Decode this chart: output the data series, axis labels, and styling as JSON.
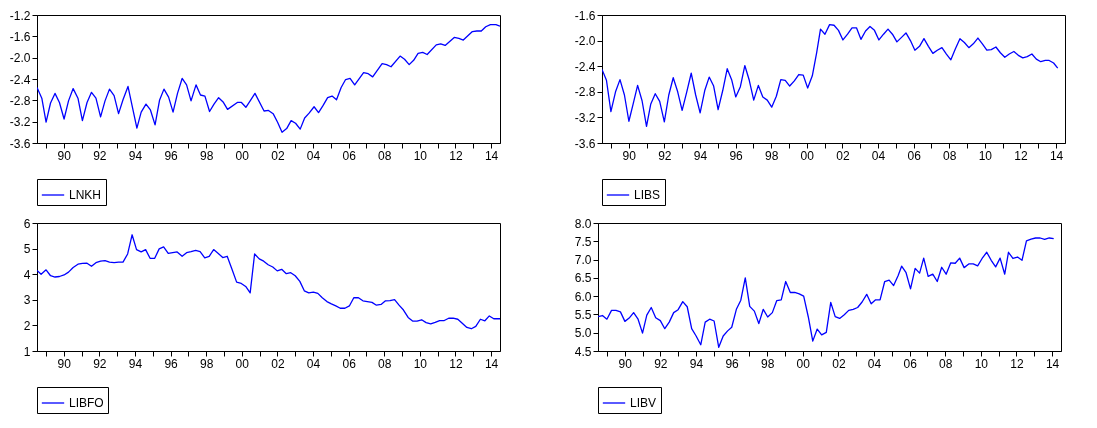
{
  "chart_data": [
    {
      "type": "line",
      "legend": "bottom",
      "xlim": [
        1988.5,
        2014.5
      ],
      "xticks": [
        {
          "value": 1989,
          "label": null
        },
        {
          "value": 1990,
          "label": "90"
        },
        {
          "value": 1991,
          "label": null
        },
        {
          "value": 1992,
          "label": "92"
        },
        {
          "value": 1993,
          "label": null
        },
        {
          "value": 1994,
          "label": "94"
        },
        {
          "value": 1995,
          "label": null
        },
        {
          "value": 1996,
          "label": "96"
        },
        {
          "value": 1997,
          "label": null
        },
        {
          "value": 1998,
          "label": "98"
        },
        {
          "value": 1999,
          "label": null
        },
        {
          "value": 2000,
          "label": "00"
        },
        {
          "value": 2001,
          "label": null
        },
        {
          "value": 2002,
          "label": "02"
        },
        {
          "value": 2003,
          "label": null
        },
        {
          "value": 2004,
          "label": "04"
        },
        {
          "value": 2005,
          "label": null
        },
        {
          "value": 2006,
          "label": "06"
        },
        {
          "value": 2007,
          "label": null
        },
        {
          "value": 2008,
          "label": "08"
        },
        {
          "value": 2009,
          "label": null
        },
        {
          "value": 2010,
          "label": "10"
        },
        {
          "value": 2011,
          "label": null
        },
        {
          "value": 2012,
          "label": "12"
        },
        {
          "value": 2013,
          "label": null
        },
        {
          "value": 2014,
          "label": "14"
        }
      ],
      "ylim": [
        -3.6,
        -1.2
      ],
      "yticks": [
        -3.6,
        -3.2,
        -2.8,
        -2.4,
        {
          "value": -2,
          "label": "-2.0"
        },
        -1.6,
        -1.2
      ],
      "series": [
        {
          "name": "LNKH",
          "color": "#0000ff",
          "x": [
            1988.5,
            1988.77,
            1989.01,
            1989.26,
            1989.51,
            1989.76,
            1990.02,
            1990.27,
            1990.53,
            1990.8,
            1991.05,
            1991.31,
            1991.56,
            1991.81,
            1992.07,
            1992.32,
            1992.57,
            1992.83,
            1993.08,
            1993.33,
            1993.61,
            1993.86,
            1994.11,
            1994.35,
            1994.62,
            1994.87,
            1995.13,
            1995.38,
            1995.63,
            1995.89,
            1996.14,
            1996.39,
            1996.65,
            1996.9,
            1997.15,
            1997.43,
            1997.68,
            1997.93,
            1998.19,
            1998.44,
            1998.7,
            1998.95,
            1999.2,
            1999.75,
            1999.98,
            2000.23,
            2000.47,
            2000.74,
            2001.25,
            2001.5,
            2001.76,
            2002.01,
            2002.26,
            2002.52,
            2002.77,
            2003.02,
            2003.28,
            2003.53,
            2003.78,
            2004.06,
            2004.31,
            2004.56,
            2004.82,
            2005.07,
            2005.32,
            2005.58,
            2005.83,
            2006.08,
            2006.34,
            2006.84,
            2007.1,
            2007.35,
            2007.88,
            2008.13,
            2008.38,
            2008.89,
            2009.14,
            2009.4,
            2009.65,
            2009.9,
            2010.16,
            2010.41,
            2010.92,
            2011.17,
            2011.42,
            2011.93,
            2012.19,
            2012.44,
            2012.95,
            2013.2,
            2013.45,
            2013.7,
            2013.96,
            2014.27,
            2014.5
          ],
          "values": [
            -2.56,
            -2.76,
            -3.21,
            -2.85,
            -2.67,
            -2.84,
            -3.15,
            -2.81,
            -2.58,
            -2.76,
            -3.18,
            -2.84,
            -2.65,
            -2.76,
            -3.11,
            -2.81,
            -2.59,
            -2.71,
            -3.05,
            -2.79,
            -2.54,
            -2.93,
            -3.32,
            -3.02,
            -2.87,
            -2.98,
            -3.26,
            -2.8,
            -2.59,
            -2.74,
            -3.02,
            -2.67,
            -2.39,
            -2.51,
            -2.81,
            -2.51,
            -2.7,
            -2.72,
            -3.01,
            -2.87,
            -2.75,
            -2.83,
            -2.97,
            -2.84,
            -2.84,
            -2.93,
            -2.81,
            -2.67,
            -3.0,
            -2.99,
            -3.05,
            -3.21,
            -3.4,
            -3.33,
            -3.18,
            -3.23,
            -3.34,
            -3.13,
            -3.04,
            -2.92,
            -3.03,
            -2.9,
            -2.75,
            -2.72,
            -2.79,
            -2.56,
            -2.41,
            -2.39,
            -2.51,
            -2.28,
            -2.3,
            -2.36,
            -2.11,
            -2.13,
            -2.17,
            -1.97,
            -2.03,
            -2.13,
            -2.05,
            -1.92,
            -1.9,
            -1.94,
            -1.76,
            -1.74,
            -1.77,
            -1.62,
            -1.64,
            -1.67,
            -1.51,
            -1.5,
            -1.5,
            -1.42,
            -1.38,
            -1.38,
            -1.41
          ]
        }
      ]
    },
    {
      "type": "line",
      "legend": "bottom",
      "xlim": [
        1988.5,
        2014.5
      ],
      "xticks": [
        {
          "value": 1989,
          "label": null
        },
        {
          "value": 1990,
          "label": "90"
        },
        {
          "value": 1991,
          "label": null
        },
        {
          "value": 1992,
          "label": "92"
        },
        {
          "value": 1993,
          "label": null
        },
        {
          "value": 1994,
          "label": "94"
        },
        {
          "value": 1995,
          "label": null
        },
        {
          "value": 1996,
          "label": "96"
        },
        {
          "value": 1997,
          "label": null
        },
        {
          "value": 1998,
          "label": "98"
        },
        {
          "value": 1999,
          "label": null
        },
        {
          "value": 2000,
          "label": "00"
        },
        {
          "value": 2001,
          "label": null
        },
        {
          "value": 2002,
          "label": "02"
        },
        {
          "value": 2003,
          "label": null
        },
        {
          "value": 2004,
          "label": "04"
        },
        {
          "value": 2005,
          "label": null
        },
        {
          "value": 2006,
          "label": "06"
        },
        {
          "value": 2007,
          "label": null
        },
        {
          "value": 2008,
          "label": "08"
        },
        {
          "value": 2009,
          "label": null
        },
        {
          "value": 2010,
          "label": "10"
        },
        {
          "value": 2011,
          "label": null
        },
        {
          "value": 2012,
          "label": "12"
        },
        {
          "value": 2013,
          "label": null
        },
        {
          "value": 2014,
          "label": "14"
        }
      ],
      "ylim": [
        -3.6,
        -1.6
      ],
      "yticks": [
        -3.6,
        -3.2,
        -2.8,
        -2.4,
        {
          "value": -2,
          "label": "-2.0"
        },
        -1.6
      ],
      "series": [
        {
          "name": "LIBS",
          "color": "#0000ff",
          "x": [
            1988.5,
            1988.75,
            1989.0,
            1989.26,
            1989.51,
            1989.76,
            1990.01,
            1990.25,
            1990.5,
            1990.75,
            1991.0,
            1991.24,
            1991.49,
            1991.74,
            1992.0,
            1992.25,
            1992.5,
            1992.75,
            1993.0,
            1993.26,
            1993.51,
            1993.76,
            1994.01,
            1994.27,
            1994.52,
            1994.77,
            1995.02,
            1995.28,
            1995.53,
            1995.78,
            1996.01,
            1996.27,
            1996.52,
            1996.77,
            1997.02,
            1997.28,
            1997.53,
            1997.78,
            1998.03,
            1998.29,
            1998.54,
            1998.79,
            1999.04,
            1999.3,
            1999.55,
            1999.8,
            2000.05,
            2000.31,
            2000.56,
            2000.77,
            2001.02,
            2001.28,
            2001.53,
            2001.78,
            2002.03,
            2002.29,
            2002.54,
            2002.79,
            2003.04,
            2003.3,
            2003.55,
            2003.8,
            2004.05,
            2004.31,
            2004.56,
            2004.81,
            2005.06,
            2005.32,
            2005.57,
            2005.82,
            2006.07,
            2006.33,
            2006.58,
            2006.83,
            2007.08,
            2007.33,
            2007.59,
            2007.84,
            2008.09,
            2008.34,
            2008.6,
            2008.85,
            2009.1,
            2009.35,
            2009.61,
            2009.86,
            2010.11,
            2010.36,
            2010.62,
            2010.87,
            2011.12,
            2011.37,
            2011.63,
            2011.88,
            2012.13,
            2012.38,
            2012.64,
            2012.89,
            2013.14,
            2013.39,
            2013.61,
            2013.86,
            2014.09
          ],
          "values": [
            -2.45,
            -2.62,
            -3.11,
            -2.8,
            -2.61,
            -2.85,
            -3.26,
            -2.99,
            -2.7,
            -2.94,
            -3.34,
            -2.99,
            -2.83,
            -2.95,
            -3.27,
            -2.85,
            -2.58,
            -2.8,
            -3.09,
            -2.8,
            -2.51,
            -2.85,
            -3.13,
            -2.78,
            -2.57,
            -2.71,
            -3.08,
            -2.78,
            -2.44,
            -2.61,
            -2.88,
            -2.72,
            -2.39,
            -2.62,
            -2.93,
            -2.7,
            -2.88,
            -2.93,
            -3.04,
            -2.87,
            -2.61,
            -2.62,
            -2.71,
            -2.63,
            -2.53,
            -2.54,
            -2.74,
            -2.55,
            -2.18,
            -1.82,
            -1.9,
            -1.75,
            -1.76,
            -1.84,
            -1.99,
            -1.9,
            -1.8,
            -1.8,
            -1.98,
            -1.85,
            -1.78,
            -1.84,
            -1.99,
            -1.9,
            -1.82,
            -1.9,
            -2.02,
            -1.95,
            -1.88,
            -2.0,
            -2.15,
            -2.09,
            -1.97,
            -2.09,
            -2.2,
            -2.15,
            -2.11,
            -2.21,
            -2.3,
            -2.13,
            -1.97,
            -2.03,
            -2.11,
            -2.05,
            -1.96,
            -2.05,
            -2.15,
            -2.14,
            -2.1,
            -2.19,
            -2.26,
            -2.21,
            -2.17,
            -2.23,
            -2.27,
            -2.25,
            -2.21,
            -2.29,
            -2.33,
            -2.31,
            -2.31,
            -2.35,
            -2.43
          ]
        }
      ]
    },
    {
      "type": "line",
      "legend": "bottom",
      "xlim": [
        1988.5,
        2014.5
      ],
      "xticks": [
        {
          "value": 1989,
          "label": null
        },
        {
          "value": 1990,
          "label": "90"
        },
        {
          "value": 1991,
          "label": null
        },
        {
          "value": 1992,
          "label": "92"
        },
        {
          "value": 1993,
          "label": null
        },
        {
          "value": 1994,
          "label": "94"
        },
        {
          "value": 1995,
          "label": null
        },
        {
          "value": 1996,
          "label": "96"
        },
        {
          "value": 1997,
          "label": null
        },
        {
          "value": 1998,
          "label": "98"
        },
        {
          "value": 1999,
          "label": null
        },
        {
          "value": 2000,
          "label": "00"
        },
        {
          "value": 2001,
          "label": null
        },
        {
          "value": 2002,
          "label": "02"
        },
        {
          "value": 2003,
          "label": null
        },
        {
          "value": 2004,
          "label": "04"
        },
        {
          "value": 2005,
          "label": null
        },
        {
          "value": 2006,
          "label": "06"
        },
        {
          "value": 2007,
          "label": null
        },
        {
          "value": 2008,
          "label": "08"
        },
        {
          "value": 2009,
          "label": null
        },
        {
          "value": 2010,
          "label": "10"
        },
        {
          "value": 2011,
          "label": null
        },
        {
          "value": 2012,
          "label": "12"
        },
        {
          "value": 2013,
          "label": null
        },
        {
          "value": 2014,
          "label": "14"
        }
      ],
      "ylim": [
        1,
        6
      ],
      "yticks": [
        1,
        2,
        3,
        4,
        5,
        6
      ],
      "series": [
        {
          "name": "LIBFO",
          "color": "#0000ff",
          "x": [
            1988.5,
            1988.73,
            1989.01,
            1989.26,
            1989.51,
            1989.76,
            1990.02,
            1990.27,
            1990.53,
            1990.8,
            1991.05,
            1991.31,
            1991.56,
            1991.81,
            1992.07,
            1992.32,
            1992.57,
            1992.83,
            1993.08,
            1993.33,
            1993.59,
            1993.84,
            1994.09,
            1994.35,
            1994.6,
            1994.85,
            1995.11,
            1995.36,
            1995.61,
            1995.87,
            1996.12,
            1996.37,
            1996.65,
            1996.9,
            1997.15,
            1997.41,
            1997.66,
            1997.92,
            1998.17,
            1998.42,
            1998.68,
            1998.93,
            1999.18,
            1999.46,
            1999.71,
            1999.97,
            2000.22,
            2000.47,
            2000.72,
            2000.98,
            2001.23,
            2001.48,
            2001.74,
            2001.99,
            2002.24,
            2002.5,
            2002.75,
            2003.0,
            2003.26,
            2003.51,
            2003.76,
            2004.02,
            2004.27,
            2004.52,
            2004.78,
            2005.03,
            2005.28,
            2005.53,
            2005.79,
            2006.04,
            2006.29,
            2006.55,
            2006.8,
            2007.05,
            2007.31,
            2007.56,
            2007.82,
            2008.07,
            2008.32,
            2008.58,
            2008.83,
            2009.08,
            2009.34,
            2009.59,
            2009.84,
            2010.1,
            2010.35,
            2010.61,
            2010.86,
            2011.11,
            2011.37,
            2011.62,
            2011.87,
            2012.13,
            2012.38,
            2012.64,
            2012.89,
            2013.14,
            2013.4,
            2013.65,
            2013.9,
            2014.15,
            2014.5
          ],
          "values": [
            4.15,
            4.0,
            4.17,
            3.94,
            3.89,
            3.91,
            3.97,
            4.08,
            4.26,
            4.39,
            4.42,
            4.43,
            4.31,
            4.45,
            4.51,
            4.53,
            4.47,
            4.45,
            4.47,
            4.47,
            4.79,
            5.54,
            4.96,
            4.87,
            4.96,
            4.62,
            4.62,
            4.99,
            5.07,
            4.81,
            4.84,
            4.87,
            4.7,
            4.84,
            4.88,
            4.93,
            4.88,
            4.64,
            4.7,
            4.96,
            4.81,
            4.65,
            4.7,
            4.17,
            3.69,
            3.64,
            3.52,
            3.27,
            4.79,
            4.6,
            4.51,
            4.37,
            4.28,
            4.13,
            4.19,
            4.02,
            4.06,
            3.94,
            3.72,
            3.35,
            3.27,
            3.3,
            3.25,
            3.08,
            2.93,
            2.84,
            2.76,
            2.67,
            2.67,
            2.76,
            3.08,
            3.08,
            2.96,
            2.93,
            2.9,
            2.79,
            2.82,
            2.96,
            2.97,
            3.01,
            2.79,
            2.6,
            2.31,
            2.17,
            2.17,
            2.22,
            2.11,
            2.06,
            2.12,
            2.19,
            2.19,
            2.28,
            2.28,
            2.24,
            2.08,
            1.92,
            1.87,
            1.96,
            2.24,
            2.18,
            2.37,
            2.26,
            2.26
          ]
        }
      ]
    },
    {
      "type": "line",
      "legend": "bottom",
      "xlim": [
        1988.5,
        2014.5
      ],
      "xticks": [
        {
          "value": 1989,
          "label": null
        },
        {
          "value": 1990,
          "label": "90"
        },
        {
          "value": 1991,
          "label": null
        },
        {
          "value": 1992,
          "label": "92"
        },
        {
          "value": 1993,
          "label": null
        },
        {
          "value": 1994,
          "label": "94"
        },
        {
          "value": 1995,
          "label": null
        },
        {
          "value": 1996,
          "label": "96"
        },
        {
          "value": 1997,
          "label": null
        },
        {
          "value": 1998,
          "label": "98"
        },
        {
          "value": 1999,
          "label": null
        },
        {
          "value": 2000,
          "label": "00"
        },
        {
          "value": 2001,
          "label": null
        },
        {
          "value": 2002,
          "label": "02"
        },
        {
          "value": 2003,
          "label": null
        },
        {
          "value": 2004,
          "label": "04"
        },
        {
          "value": 2005,
          "label": null
        },
        {
          "value": 2006,
          "label": "06"
        },
        {
          "value": 2007,
          "label": null
        },
        {
          "value": 2008,
          "label": "08"
        },
        {
          "value": 2009,
          "label": null
        },
        {
          "value": 2010,
          "label": "10"
        },
        {
          "value": 2011,
          "label": null
        },
        {
          "value": 2012,
          "label": "12"
        },
        {
          "value": 2013,
          "label": null
        },
        {
          "value": 2014,
          "label": "14"
        }
      ],
      "ylim": [
        4.5,
        8
      ],
      "yticks": [
        4.5,
        {
          "value": 5,
          "label": "5.0"
        },
        5.5,
        {
          "value": 6,
          "label": "6.0"
        },
        6.5,
        {
          "value": 7,
          "label": "7.0"
        },
        7.5,
        {
          "value": 8,
          "label": "8.0"
        }
      ],
      "series": [
        {
          "name": "LIBV",
          "color": "#0000ff",
          "x": [
            1988.5,
            1988.75,
            1989.0,
            1989.26,
            1989.51,
            1989.76,
            1990.01,
            1990.25,
            1990.5,
            1990.75,
            1991.0,
            1991.24,
            1991.49,
            1991.74,
            1992.0,
            1992.25,
            1992.5,
            1992.75,
            1993.0,
            1993.26,
            1993.51,
            1993.76,
            1994.01,
            1994.27,
            1994.52,
            1994.77,
            1995.02,
            1995.28,
            1995.53,
            1995.78,
            1996.01,
            1996.27,
            1996.52,
            1996.77,
            1997.02,
            1997.28,
            1997.53,
            1997.78,
            1998.03,
            1998.29,
            1998.54,
            1998.79,
            1999.04,
            1999.3,
            1999.55,
            1999.8,
            2000.05,
            2000.31,
            2000.56,
            2000.81,
            2001.06,
            2001.32,
            2001.57,
            2001.82,
            2002.07,
            2002.33,
            2002.58,
            2002.83,
            2003.08,
            2003.33,
            2003.59,
            2003.84,
            2004.09,
            2004.34,
            2004.6,
            2004.85,
            2005.1,
            2005.35,
            2005.55,
            2005.8,
            2006.05,
            2006.31,
            2006.56,
            2006.79,
            2007.04,
            2007.3,
            2007.55,
            2007.8,
            2008.05,
            2008.31,
            2008.56,
            2008.81,
            2009.06,
            2009.32,
            2009.57,
            2009.82,
            2010.07,
            2010.33,
            2010.58,
            2010.83,
            2011.08,
            2011.34,
            2011.55,
            2011.8,
            2012.06,
            2012.31,
            2012.56,
            2012.82,
            2013.07,
            2013.33,
            2013.58,
            2013.84,
            2014.09
          ],
          "values": [
            5.44,
            5.47,
            5.37,
            5.61,
            5.61,
            5.57,
            5.31,
            5.4,
            5.55,
            5.37,
            4.99,
            5.48,
            5.69,
            5.41,
            5.33,
            5.11,
            5.29,
            5.55,
            5.63,
            5.85,
            5.71,
            5.11,
            4.91,
            4.67,
            5.29,
            5.37,
            5.32,
            4.6,
            4.91,
            5.05,
            5.15,
            5.64,
            5.89,
            6.5,
            5.72,
            5.59,
            5.25,
            5.64,
            5.43,
            5.55,
            5.88,
            5.9,
            6.4,
            6.1,
            6.1,
            6.06,
            6.0,
            5.43,
            4.77,
            5.1,
            4.94,
            5.01,
            5.83,
            5.44,
            5.39,
            5.49,
            5.61,
            5.64,
            5.69,
            5.84,
            6.05,
            5.79,
            5.9,
            5.9,
            6.4,
            6.44,
            6.29,
            6.56,
            6.82,
            6.64,
            6.2,
            6.76,
            6.63,
            7.04,
            6.54,
            6.6,
            6.4,
            6.79,
            6.6,
            6.91,
            6.9,
            7.04,
            6.78,
            6.88,
            6.88,
            6.83,
            7.03,
            7.2,
            6.98,
            6.8,
            7.04,
            6.6,
            7.2,
            7.03,
            7.07,
            6.98,
            7.51,
            7.56,
            7.59,
            7.59,
            7.55,
            7.59,
            7.57
          ]
        }
      ]
    }
  ]
}
